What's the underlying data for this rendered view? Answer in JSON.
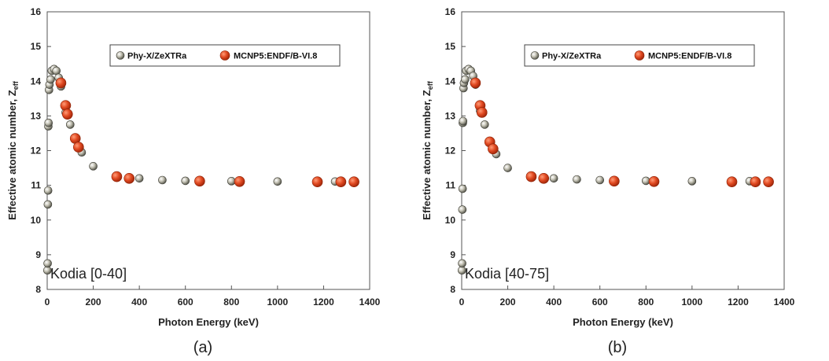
{
  "chart_data": [
    {
      "type": "scatter",
      "panel_caption": "(a)",
      "sample_label": "Kodia [0-40]",
      "xlabel": "Photon Energy (keV)",
      "ylabel": "Effective atomic number, Z",
      "ylabel_sub": "eff",
      "xlim": [
        0,
        1400
      ],
      "ylim": [
        8,
        16
      ],
      "xticks": [
        0,
        200,
        400,
        600,
        800,
        1000,
        1200,
        1400
      ],
      "yticks": [
        8,
        9,
        10,
        11,
        12,
        13,
        14,
        15,
        16
      ],
      "legend_position": "top-center",
      "grid": false,
      "series": [
        {
          "name": "Phy-X/ZeXTRa",
          "color": "#7a7a6a",
          "x": [
            1,
            2,
            3,
            4,
            5,
            6,
            8,
            10,
            15,
            20,
            30,
            40,
            50,
            60,
            80,
            100,
            150,
            200,
            300,
            400,
            500,
            600,
            800,
            1000,
            1250
          ],
          "y": [
            8.55,
            8.75,
            10.45,
            10.85,
            12.7,
            12.8,
            13.75,
            13.9,
            14.05,
            14.3,
            14.35,
            14.3,
            14.1,
            13.85,
            13.1,
            12.75,
            11.95,
            11.55,
            11.25,
            11.2,
            11.15,
            11.13,
            11.12,
            11.11,
            11.11
          ]
        },
        {
          "name": "MCNP5:ENDF/B-VI.8",
          "color": "#d9401c",
          "x": [
            59.5,
            80,
            88,
            122,
            136,
            302,
            356,
            662,
            835,
            1173,
            1275,
            1332
          ],
          "y": [
            13.95,
            13.3,
            13.05,
            12.35,
            12.1,
            11.25,
            11.2,
            11.12,
            11.11,
            11.1,
            11.1,
            11.1
          ]
        }
      ]
    },
    {
      "type": "scatter",
      "panel_caption": "(b)",
      "sample_label": "Kodia [40-75]",
      "xlabel": "Photon Energy (keV)",
      "ylabel": "Effective atomic number, Z",
      "ylabel_sub": "eff",
      "xlim": [
        0,
        1400
      ],
      "ylim": [
        8,
        16
      ],
      "xticks": [
        0,
        200,
        400,
        600,
        800,
        1000,
        1200,
        1400
      ],
      "yticks": [
        8,
        9,
        10,
        11,
        12,
        13,
        14,
        15,
        16
      ],
      "legend_position": "top-center",
      "grid": false,
      "series": [
        {
          "name": "Phy-X/ZeXTRa",
          "color": "#7a7a6a",
          "x": [
            1,
            2,
            3,
            4,
            5,
            6,
            8,
            10,
            15,
            20,
            30,
            40,
            50,
            60,
            80,
            100,
            150,
            200,
            300,
            400,
            500,
            600,
            800,
            1000,
            1250
          ],
          "y": [
            8.55,
            8.75,
            10.3,
            10.9,
            12.8,
            12.85,
            13.8,
            13.95,
            14.05,
            14.3,
            14.35,
            14.3,
            14.15,
            13.9,
            13.15,
            12.75,
            11.9,
            11.5,
            11.25,
            11.2,
            11.17,
            11.15,
            11.13,
            11.12,
            11.12
          ]
        },
        {
          "name": "MCNP5:ENDF/B-VI.8",
          "color": "#d9401c",
          "x": [
            59.5,
            80,
            88,
            122,
            136,
            302,
            356,
            662,
            835,
            1173,
            1275,
            1332
          ],
          "y": [
            13.95,
            13.3,
            13.1,
            12.25,
            12.05,
            11.25,
            11.2,
            11.12,
            11.11,
            11.1,
            11.1,
            11.1
          ]
        }
      ]
    }
  ]
}
